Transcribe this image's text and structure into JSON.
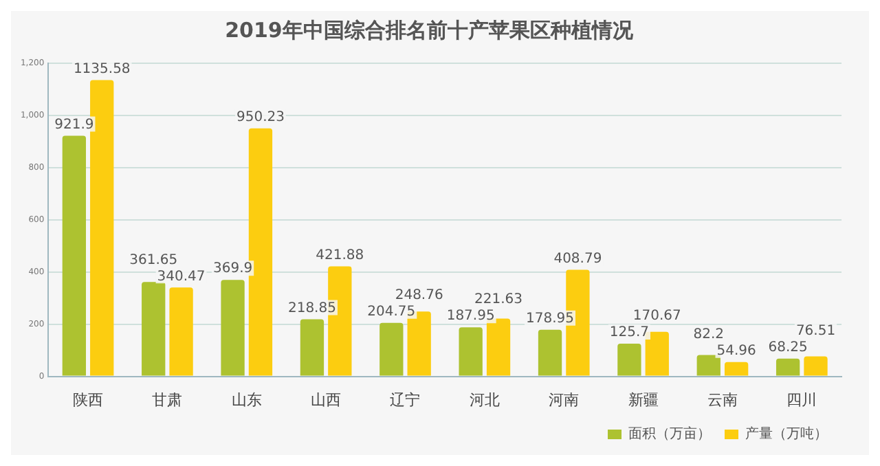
{
  "chart_data": {
    "type": "bar",
    "title": "2019年中国综合排名前十产苹果区种植情况",
    "categories": [
      "陕西",
      "甘肃",
      "山东",
      "山西",
      "辽宁",
      "河北",
      "河南",
      "新疆",
      "云南",
      "四川"
    ],
    "series": [
      {
        "name": "面积（万亩）",
        "color": "#adc230",
        "values": [
          921.9,
          361.65,
          369.9,
          218.85,
          204.75,
          187.95,
          178.95,
          125.7,
          82.2,
          68.25
        ]
      },
      {
        "name": "产量（万吨）",
        "color": "#fccd10",
        "values": [
          1135.58,
          340.47,
          950.23,
          421.88,
          248.76,
          221.63,
          408.79,
          170.67,
          54.96,
          76.51
        ]
      }
    ],
    "ylim": [
      0,
      1200
    ],
    "yticks": [
      0,
      200,
      400,
      600,
      800,
      {
        "value": 1000,
        "label": "1,000"
      },
      {
        "value": 1200,
        "label": "1,200"
      }
    ],
    "grid": "y",
    "legend": "bottom",
    "data_labels": true
  }
}
